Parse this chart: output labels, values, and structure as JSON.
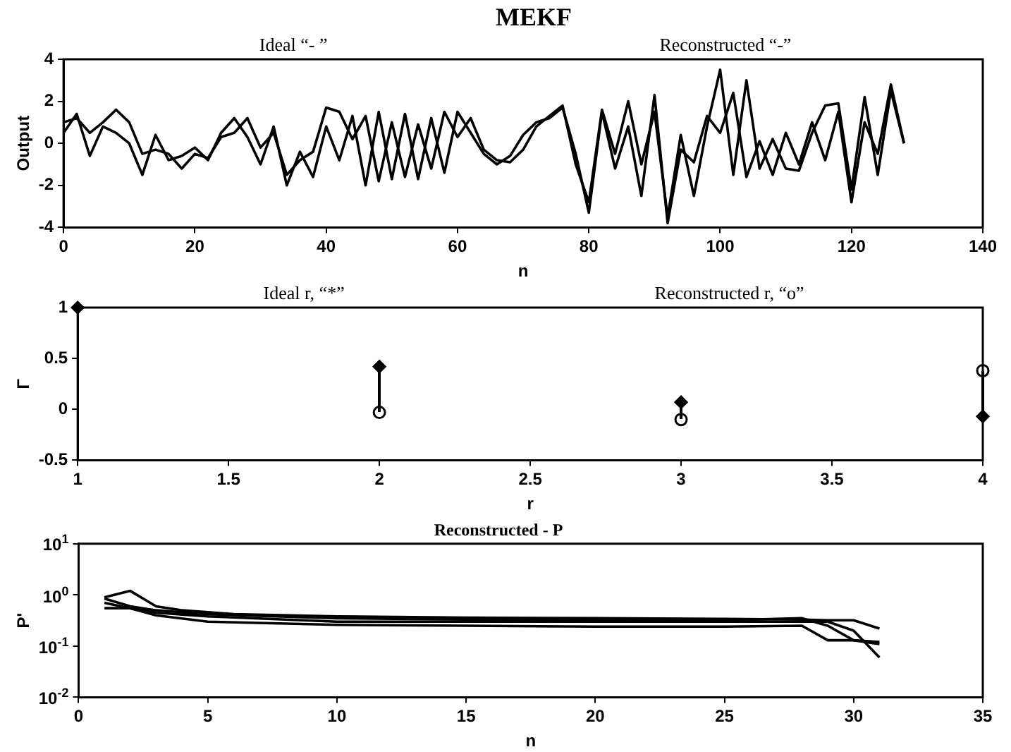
{
  "chart_data": [
    {
      "type": "line",
      "title": "MEKF",
      "xlabel": "n",
      "ylabel": "Output",
      "annotations": [
        "Ideal “- ”",
        "Reconstructed “-”"
      ],
      "xlim": [
        0,
        140
      ],
      "xticks": [
        0,
        20,
        40,
        60,
        80,
        100,
        120,
        140
      ],
      "ylim": [
        -4,
        4
      ],
      "yticks": [
        -4,
        -2,
        0,
        2,
        4
      ],
      "grid": false,
      "legend": false,
      "marker": "none",
      "line_style": "solid",
      "x": [
        0,
        2,
        4,
        6,
        8,
        10,
        12,
        14,
        16,
        18,
        20,
        22,
        24,
        26,
        28,
        30,
        32,
        34,
        36,
        38,
        40,
        42,
        44,
        46,
        48,
        50,
        52,
        54,
        56,
        58,
        60,
        62,
        64,
        66,
        68,
        70,
        72,
        74,
        76,
        78,
        80,
        82,
        84,
        86,
        88,
        90,
        92,
        94,
        96,
        98,
        100,
        102,
        104,
        106,
        108,
        110,
        112,
        114,
        116,
        118,
        120,
        122,
        124,
        126,
        128
      ],
      "series": [
        {
          "color": "#000000",
          "values": [
            1.0,
            1.2,
            0.5,
            1.0,
            1.6,
            1.0,
            -0.5,
            -0.3,
            -0.5,
            -1.2,
            -0.5,
            -0.7,
            0.3,
            0.5,
            1.2,
            -0.2,
            0.5,
            -1.5,
            -0.8,
            -0.4,
            1.7,
            1.5,
            0.2,
            1.3,
            -1.8,
            1.0,
            -1.6,
            0.9,
            -1.2,
            1.5,
            0.3,
            1.2,
            -0.3,
            -0.8,
            -0.9,
            -0.3,
            0.8,
            1.3,
            1.8,
            -1.0,
            -2.8,
            1.6,
            -0.5,
            2.0,
            -1.0,
            1.5,
            -3.5,
            0.4,
            -2.5,
            0.8,
            3.5,
            -1.5,
            3.0,
            -1.2,
            0.2,
            -1.2,
            -1.3,
            0.5,
            1.8,
            1.9,
            -2.2,
            2.2,
            -1.5,
            2.5,
            0.0
          ]
        },
        {
          "color": "#000000",
          "values": [
            0.5,
            1.4,
            -0.6,
            0.8,
            0.5,
            0.0,
            -1.5,
            0.4,
            -0.8,
            -0.6,
            -0.2,
            -0.8,
            0.5,
            1.2,
            0.3,
            -1.0,
            0.8,
            -2.0,
            -0.4,
            -1.6,
            0.8,
            -0.8,
            1.3,
            -2.0,
            1.5,
            -1.7,
            1.4,
            -1.7,
            1.2,
            -1.4,
            1.5,
            0.5,
            -0.5,
            -1.0,
            -0.6,
            0.4,
            1.0,
            1.2,
            1.7,
            -0.5,
            -3.3,
            1.5,
            -1.2,
            0.8,
            -2.5,
            2.3,
            -3.8,
            -0.3,
            -0.9,
            1.3,
            0.5,
            2.4,
            -1.6,
            0.1,
            -1.5,
            0.5,
            -1.0,
            1.0,
            -0.8,
            1.5,
            -2.8,
            1.0,
            -0.5,
            2.8,
            0.0
          ]
        }
      ]
    },
    {
      "type": "scatter",
      "xlabel": "r",
      "ylabel": "Γ",
      "annotations": [
        "Ideal r, “*”",
        "Reconstructed r, “o”"
      ],
      "xlim": [
        1,
        4
      ],
      "xticks": [
        1,
        1.5,
        2,
        2.5,
        3,
        3.5,
        4
      ],
      "ylim": [
        -0.5,
        1
      ],
      "yticks": [
        -0.5,
        0,
        0.5,
        1
      ],
      "grid": false,
      "legend": false,
      "x": [
        1,
        2,
        3,
        4
      ],
      "series": [
        {
          "color": "#000000",
          "marker": "diamond",
          "values": [
            1,
            0.42,
            0.07,
            -0.07
          ]
        },
        {
          "color": "#000000",
          "marker": "circle",
          "values": [
            null,
            -0.03,
            -0.1,
            0.38
          ]
        }
      ]
    },
    {
      "type": "line",
      "title": "Reconstructed - P",
      "xlabel": "n",
      "ylabel": "P'",
      "log": "y",
      "xlim": [
        0,
        35
      ],
      "xticks": [
        0,
        5,
        10,
        15,
        20,
        25,
        30,
        35
      ],
      "ylim": [
        0.01,
        10
      ],
      "yticks": [
        {
          "value": 0.01,
          "label": "10$^{-2}$"
        },
        {
          "value": 0.1,
          "label": "10$^{-1}$"
        },
        {
          "value": 1,
          "label": "10$^{0}$"
        },
        {
          "value": 10,
          "label": "10$^{1}$"
        }
      ],
      "grid": false,
      "legend": false,
      "marker": "none",
      "line_style": "solid",
      "series": [
        {
          "color": "#000000",
          "x": [
            1,
            2,
            3,
            4,
            6,
            10,
            15,
            20,
            25,
            28,
            29,
            30,
            31
          ],
          "values": [
            0.9,
            1.2,
            0.6,
            0.5,
            0.42,
            0.38,
            0.36,
            0.35,
            0.34,
            0.33,
            0.32,
            0.32,
            0.22
          ]
        },
        {
          "color": "#000000",
          "x": [
            1,
            2,
            3,
            5,
            10,
            15,
            20,
            25,
            28,
            29,
            30,
            31
          ],
          "values": [
            0.85,
            0.6,
            0.5,
            0.42,
            0.35,
            0.33,
            0.32,
            0.32,
            0.35,
            0.25,
            0.13,
            0.12
          ]
        },
        {
          "color": "#000000",
          "x": [
            1,
            2,
            3,
            5,
            10,
            15,
            20,
            25,
            28,
            29,
            30,
            31
          ],
          "values": [
            0.7,
            0.55,
            0.4,
            0.3,
            0.26,
            0.25,
            0.24,
            0.24,
            0.25,
            0.13,
            0.13,
            0.11
          ]
        },
        {
          "color": "#000000",
          "x": [
            1,
            2,
            3,
            5,
            10,
            20,
            28,
            29,
            30,
            31
          ],
          "values": [
            0.55,
            0.55,
            0.45,
            0.38,
            0.3,
            0.3,
            0.3,
            0.3,
            0.2,
            0.06
          ]
        }
      ]
    }
  ]
}
